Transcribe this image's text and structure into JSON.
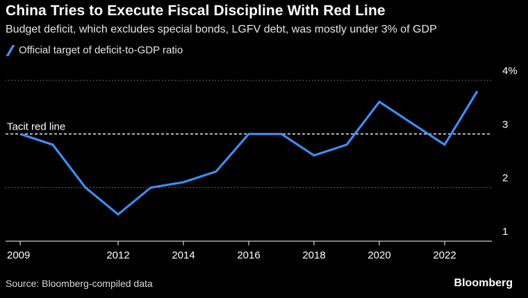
{
  "title": "China Tries to Execute Fiscal Discipline With Red Line",
  "subtitle": "Budget deficit, which excludes special bonds, LGFV debt, was mostly under 3% of GDP",
  "legend_label": "Official target of deficit-to-GDP ratio",
  "source": "Source: Bloomberg-compiled data",
  "brand": "Bloomberg",
  "colors": {
    "series": "#3d8ef5",
    "background": "#000000",
    "grid": "#888888"
  },
  "chart_data": {
    "type": "line",
    "title": "China Tries to Execute Fiscal Discipline With Red Line",
    "xlabel": "",
    "ylabel": "",
    "x": [
      2009,
      2010,
      2011,
      2012,
      2013,
      2014,
      2015,
      2016,
      2017,
      2018,
      2019,
      2020,
      2021,
      2022,
      2023
    ],
    "series": [
      {
        "name": "Official target of deficit-to-GDP ratio",
        "values": [
          3.0,
          2.8,
          2.0,
          1.5,
          2.0,
          2.1,
          2.3,
          3.0,
          3.0,
          2.6,
          2.8,
          3.6,
          3.2,
          2.8,
          3.8
        ]
      }
    ],
    "ylim": [
      1,
      4
    ],
    "xlim": [
      2009,
      2023
    ],
    "yticks": [
      1,
      2,
      3,
      4
    ],
    "ytick_labels": [
      "1",
      "2",
      "3",
      "4%"
    ],
    "xticks": [
      2009,
      2012,
      2014,
      2016,
      2018,
      2020,
      2022
    ],
    "reference_line": {
      "value": 3,
      "label": "Tacit red line"
    },
    "grid": true,
    "legend_position": "top-left"
  }
}
